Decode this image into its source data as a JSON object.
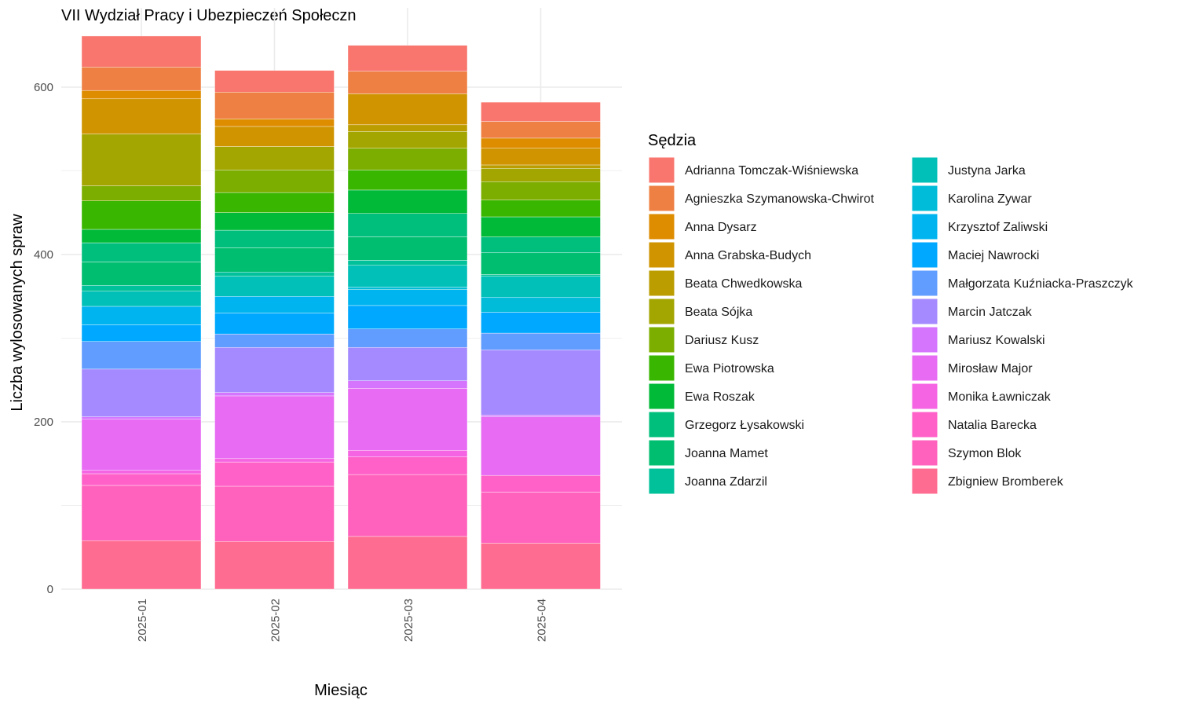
{
  "chart_data": {
    "type": "bar",
    "stacked": true,
    "title": "VII Wydział Pracy i Ubezpieczeń Społeczn",
    "xlabel": "Miesiąc",
    "ylabel": "Liczba wylosowanych spraw",
    "ylim": [
      0,
      660
    ],
    "y_ticks": [
      0,
      200,
      400,
      600
    ],
    "grid": true,
    "legend_title": "Sędzia",
    "legend_position": "right",
    "categories": [
      "2025-01",
      "2025-02",
      "2025-03",
      "2025-04"
    ],
    "series": [
      {
        "name": "Zbigniew Bromberek",
        "color": "#FF6C91",
        "values": [
          58,
          57,
          63,
          55
        ]
      },
      {
        "name": "Szymon Blok",
        "color": "#FF62BC",
        "values": [
          66,
          66,
          74,
          61
        ]
      },
      {
        "name": "Natalia Barecka",
        "color": "#FF61C9",
        "values": [
          14,
          29,
          21,
          20
        ]
      },
      {
        "name": "Monika Ławniczak",
        "color": "#F564E3",
        "values": [
          4,
          4,
          8,
          0
        ]
      },
      {
        "name": "Mirosław Major",
        "color": "#E76BF3",
        "values": [
          61,
          75,
          74,
          70
        ]
      },
      {
        "name": "Mariusz Kowalski",
        "color": "#D575FE",
        "values": [
          3,
          4,
          9,
          2
        ]
      },
      {
        "name": "Marcin Jatczak",
        "color": "#A58AFF",
        "values": [
          57,
          54,
          40,
          78
        ]
      },
      {
        "name": "Małgorzata Kuźniacka-Praszczyk",
        "color": "#619CFF",
        "values": [
          33,
          16,
          22,
          20
        ]
      },
      {
        "name": "Maciej Nawrocki",
        "color": "#00A9FF",
        "values": [
          20,
          25,
          28,
          25
        ]
      },
      {
        "name": "Krzysztof Zaliwski",
        "color": "#00B4EF",
        "values": [
          22,
          20,
          19,
          0
        ]
      },
      {
        "name": "Karolina Zywar",
        "color": "#00BCD8",
        "values": [
          0,
          0,
          3,
          18
        ]
      },
      {
        "name": "Justyna Jarka",
        "color": "#00C0B8",
        "values": [
          18,
          24,
          26,
          25
        ]
      },
      {
        "name": "Joanna Zdarzil",
        "color": "#00C19A",
        "values": [
          7,
          5,
          6,
          2
        ]
      },
      {
        "name": "Joanna Mamet",
        "color": "#00BE70",
        "values": [
          28,
          29,
          28,
          26
        ]
      },
      {
        "name": "Grzegorz Łysakowski",
        "color": "#00BF7D",
        "values": [
          23,
          21,
          28,
          19
        ]
      },
      {
        "name": "Ewa Roszak",
        "color": "#00BA38",
        "values": [
          16,
          21,
          28,
          24
        ]
      },
      {
        "name": "Ewa Piotrowska",
        "color": "#39B600",
        "values": [
          34,
          24,
          24,
          20
        ]
      },
      {
        "name": "Dariusz Kusz",
        "color": "#7CAE00",
        "values": [
          18,
          27,
          26,
          22
        ]
      },
      {
        "name": "Beata Sójka",
        "color": "#A3A500",
        "values": [
          62,
          28,
          20,
          16
        ]
      },
      {
        "name": "Beata Chwedkowska",
        "color": "#BB9D00",
        "values": [
          0,
          0,
          8,
          4
        ]
      },
      {
        "name": "Anna Grabska-Budych",
        "color": "#CF9400",
        "values": [
          42,
          24,
          37,
          20
        ]
      },
      {
        "name": "Anna Dysarz",
        "color": "#DE8C00",
        "values": [
          10,
          9,
          0,
          12
        ]
      },
      {
        "name": "Agnieszka Szymanowska-Chwirot",
        "color": "#EE8044",
        "values": [
          28,
          32,
          27,
          20
        ]
      },
      {
        "name": "Adrianna Tomczak-Wiśniewska",
        "color": "#F8766D",
        "values": [
          37,
          26,
          31,
          23
        ]
      }
    ]
  },
  "legend_columns": [
    [
      "Adrianna Tomczak-Wiśniewska",
      "Agnieszka Szymanowska-Chwirot",
      "Anna Dysarz",
      "Anna Grabska-Budych",
      "Beata Chwedkowska",
      "Beata Sójka",
      "Dariusz Kusz",
      "Ewa Piotrowska",
      "Ewa Roszak",
      "Grzegorz Łysakowski",
      "Joanna Mamet",
      "Joanna Zdarzil"
    ],
    [
      "Justyna Jarka",
      "Karolina Zywar",
      "Krzysztof Zaliwski",
      "Maciej Nawrocki",
      "Małgorzata Kuźniacka-Praszczyk",
      "Marcin Jatczak",
      "Mariusz Kowalski",
      "Mirosław Major",
      "Monika Ławniczak",
      "Natalia Barecka",
      "Szymon Blok",
      "Zbigniew Bromberek"
    ]
  ]
}
